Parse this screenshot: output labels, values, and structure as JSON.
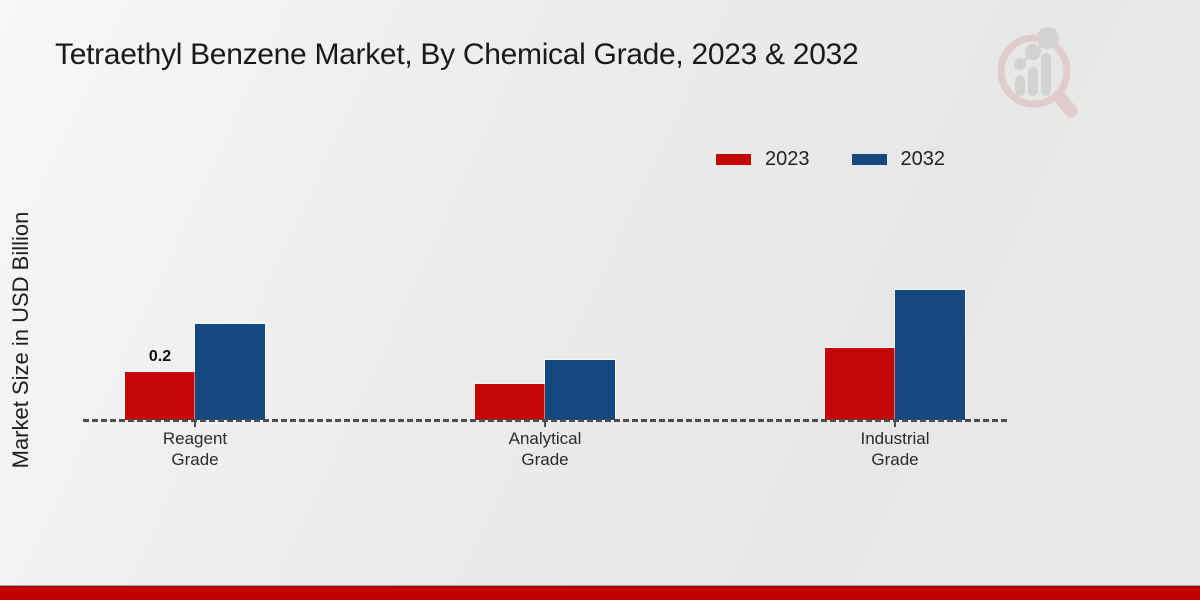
{
  "title": "Tetraethyl Benzene Market, By Chemical Grade, 2023 & 2032",
  "y_axis_label": "Market Size in USD Billion",
  "legend": {
    "position": "top-right",
    "items": [
      {
        "label": "2023",
        "color": "#c40606"
      },
      {
        "label": "2032",
        "color": "#14487f"
      }
    ]
  },
  "logo": {
    "name": "market-research-magnifier-logo"
  },
  "footer": {
    "bar_color": "#c00000"
  },
  "chart_data": {
    "type": "bar",
    "title": "Tetraethyl Benzene Market, By Chemical Grade, 2023 & 2032",
    "xlabel": "",
    "ylabel": "Market Size in USD Billion",
    "categories": [
      "Reagent\nGrade",
      "Analytical\nGrade",
      "Industrial\nGrade"
    ],
    "series": [
      {
        "name": "2023",
        "color": "#c40606",
        "values": [
          0.2,
          0.15,
          0.3
        ],
        "point_labels": [
          "0.2",
          "",
          ""
        ]
      },
      {
        "name": "2032",
        "color": "#14487f",
        "values": [
          0.4,
          0.25,
          0.54
        ],
        "point_labels": [
          "",
          "",
          ""
        ]
      }
    ],
    "ylim": [
      0,
      0.6
    ],
    "baseline_axis_style": "dashed",
    "grid": false,
    "legend_position": "top-right"
  }
}
